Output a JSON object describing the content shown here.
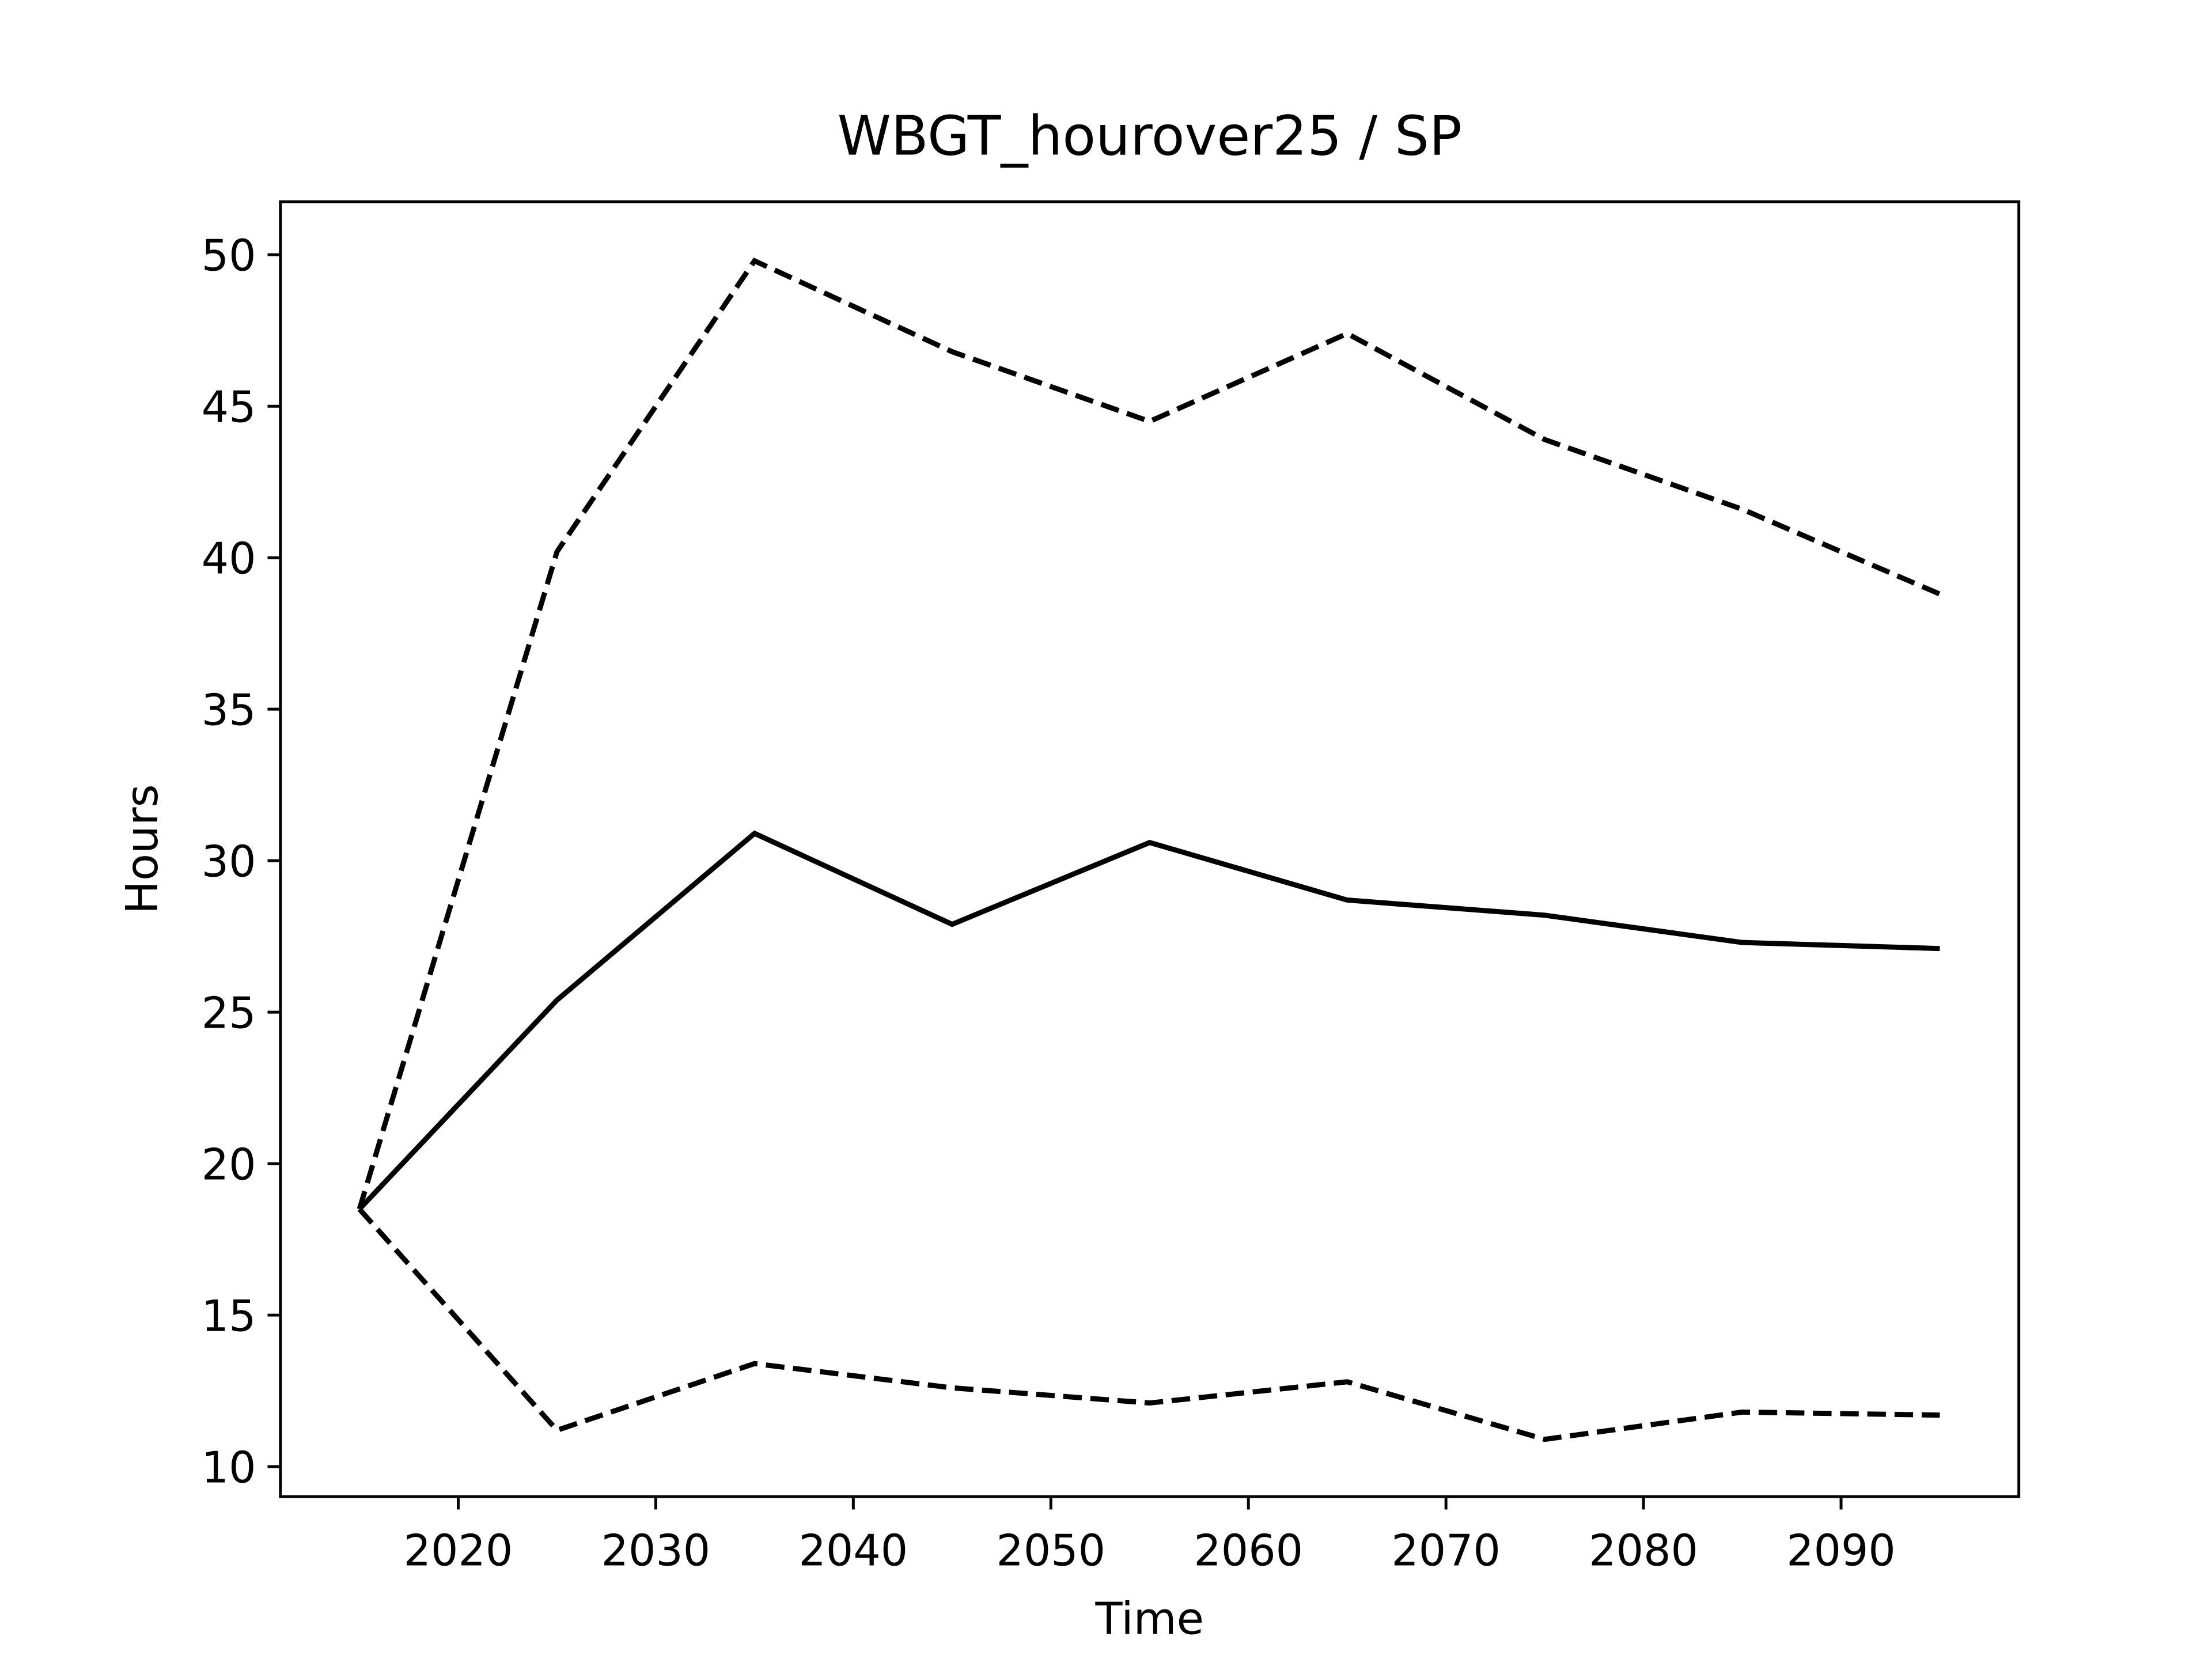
{
  "chart_data": {
    "type": "line",
    "title": "WBGT_hourover25 / SP",
    "x_label": "Time",
    "y_label": "Hours",
    "x": [
      2015,
      2025,
      2035,
      2045,
      2055,
      2065,
      2075,
      2085,
      2095
    ],
    "series": [
      {
        "color": "#000000",
        "linestyle": "solid",
        "values": [
          18.5,
          25.4,
          30.9,
          27.9,
          30.6,
          28.7,
          28.2,
          27.3,
          27.1
        ]
      },
      {
        "color": "#000000",
        "linestyle": "dashed",
        "values": [
          18.5,
          40.2,
          49.8,
          46.8,
          44.5,
          47.4,
          43.9,
          41.6,
          38.8
        ]
      },
      {
        "color": "#000000",
        "linestyle": "dashed",
        "values": [
          18.5,
          11.2,
          13.4,
          12.6,
          12.1,
          12.8,
          10.9,
          11.8,
          11.7
        ]
      }
    ],
    "xlim": [
      2011,
      2099
    ],
    "xticks": [
      2020,
      2030,
      2040,
      2050,
      2060,
      2070,
      2080,
      2090
    ],
    "ylim": [
      9.01,
      51.75
    ],
    "yticks": [
      10,
      15,
      20,
      25,
      30,
      35,
      40,
      45,
      50
    ],
    "grid": false
  }
}
